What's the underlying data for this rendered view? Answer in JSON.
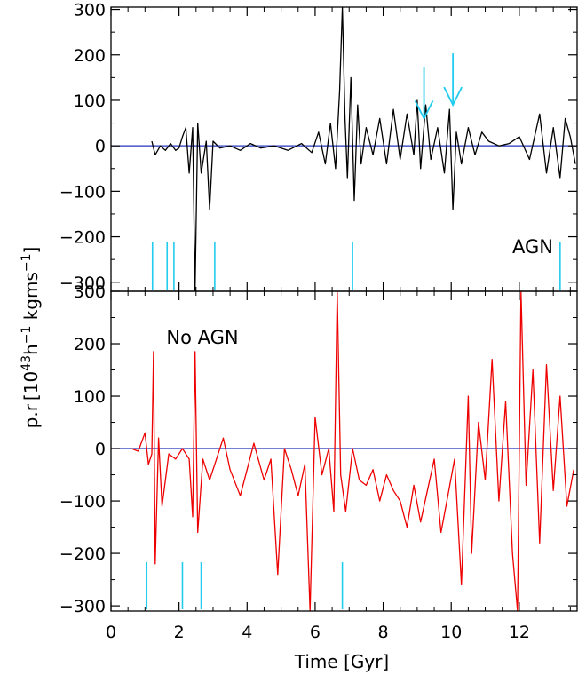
{
  "chart_data": [
    {
      "type": "line",
      "panel": "top",
      "label": "AGN",
      "line_color": "#000000",
      "zero_line_color": "#2233bb",
      "marker_color": "#22ccee",
      "xlim": [
        0,
        13.7
      ],
      "ylim": [
        -320,
        305
      ],
      "x_ticks": [
        0,
        2,
        4,
        6,
        8,
        10,
        12
      ],
      "y_ticks": [
        -300,
        -200,
        -100,
        0,
        100,
        200,
        300
      ],
      "series": [
        {
          "x": [
            1.2,
            1.3,
            1.45,
            1.6,
            1.75,
            1.9,
            2.0,
            2.1,
            2.2,
            2.3,
            2.4,
            2.47,
            2.55,
            2.65,
            2.8,
            2.9,
            3.0,
            3.2,
            3.5,
            3.8,
            4.1,
            4.4,
            4.8,
            5.2,
            5.6,
            5.9,
            6.1,
            6.3,
            6.45,
            6.6,
            6.72,
            6.8,
            6.88,
            6.95,
            7.05,
            7.15,
            7.25,
            7.35,
            7.5,
            7.7,
            7.9,
            8.1,
            8.3,
            8.5,
            8.7,
            8.9,
            9.0,
            9.1,
            9.25,
            9.4,
            9.6,
            9.8,
            9.95,
            10.05,
            10.15,
            10.3,
            10.5,
            10.7,
            10.9,
            11.1,
            11.4,
            11.7,
            12.0,
            12.3,
            12.6,
            12.8,
            13.0,
            13.2,
            13.35,
            13.5,
            13.65
          ],
          "y": [
            10,
            -20,
            0,
            -10,
            5,
            -10,
            -5,
            20,
            40,
            -60,
            40,
            -320,
            50,
            -60,
            10,
            -140,
            10,
            -5,
            0,
            -10,
            5,
            -5,
            0,
            -10,
            5,
            -15,
            30,
            -40,
            50,
            -50,
            120,
            305,
            60,
            -70,
            150,
            -120,
            90,
            -40,
            40,
            -20,
            60,
            -40,
            80,
            -30,
            70,
            -20,
            100,
            -50,
            90,
            -30,
            40,
            -60,
            80,
            -140,
            30,
            -40,
            40,
            -20,
            30,
            10,
            0,
            5,
            20,
            -30,
            70,
            -60,
            40,
            -70,
            60,
            20,
            -40
          ]
        }
      ],
      "markers": [
        1.22,
        1.65,
        1.85,
        3.05,
        7.1,
        13.2
      ],
      "arrows": [
        {
          "x": 9.2,
          "tip_y": 60
        },
        {
          "x": 10.05,
          "tip_y": 90
        }
      ]
    },
    {
      "type": "line",
      "panel": "bottom",
      "label": "No AGN",
      "line_color": "#ee0000",
      "zero_line_color": "#2233bb",
      "marker_color": "#22ccee",
      "xlim": [
        0,
        13.7
      ],
      "ylim": [
        -310,
        300
      ],
      "x_ticks": [
        0,
        2,
        4,
        6,
        8,
        10,
        12
      ],
      "y_ticks": [
        -300,
        -200,
        -100,
        0,
        100,
        200,
        300
      ],
      "series": [
        {
          "x": [
            0.6,
            0.8,
            1.0,
            1.1,
            1.2,
            1.25,
            1.3,
            1.4,
            1.5,
            1.7,
            1.9,
            2.1,
            2.3,
            2.4,
            2.47,
            2.55,
            2.7,
            2.9,
            3.1,
            3.3,
            3.5,
            3.8,
            4.0,
            4.2,
            4.5,
            4.7,
            4.9,
            5.1,
            5.3,
            5.5,
            5.7,
            5.85,
            6.0,
            6.2,
            6.4,
            6.55,
            6.65,
            6.75,
            6.9,
            7.1,
            7.3,
            7.5,
            7.7,
            7.9,
            8.1,
            8.3,
            8.5,
            8.7,
            8.9,
            9.1,
            9.3,
            9.5,
            9.7,
            9.9,
            10.1,
            10.3,
            10.5,
            10.6,
            10.8,
            11.0,
            11.2,
            11.4,
            11.6,
            11.8,
            11.95,
            12.05,
            12.2,
            12.4,
            12.6,
            12.8,
            13.0,
            13.2,
            13.4,
            13.6
          ],
          "y": [
            0,
            -5,
            30,
            -30,
            -10,
            185,
            -220,
            20,
            -110,
            -10,
            -20,
            0,
            -20,
            -130,
            185,
            -160,
            -20,
            -60,
            -20,
            20,
            -40,
            -90,
            -40,
            10,
            -60,
            -20,
            -240,
            0,
            -40,
            -90,
            -30,
            -310,
            60,
            -50,
            0,
            -120,
            300,
            -50,
            -120,
            0,
            -60,
            -70,
            -40,
            -100,
            -50,
            -80,
            -100,
            -150,
            -70,
            -140,
            -80,
            -20,
            -160,
            -90,
            -20,
            -260,
            100,
            -200,
            50,
            -60,
            170,
            -100,
            90,
            -200,
            -310,
            300,
            -70,
            150,
            -180,
            160,
            -80,
            100,
            -110,
            -40
          ]
        }
      ],
      "markers": [
        1.05,
        2.1,
        2.65,
        6.8
      ],
      "arrows": []
    }
  ],
  "axes": {
    "xlabel": "Time [Gyr]",
    "ylabel_prefix": "p.",
    "ylabel_symbol": "r",
    "ylabel_units": "[10",
    "ylabel_exp1": "43",
    "ylabel_mid": "h",
    "ylabel_exp2": "−1",
    "ylabel_mid2": " kgms",
    "ylabel_exp3": "−1",
    "ylabel_end": "]"
  }
}
